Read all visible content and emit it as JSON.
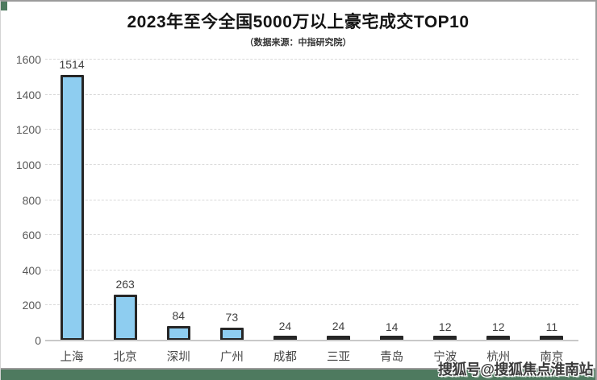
{
  "page": {
    "watermark": "搜狐号@搜狐焦点淮南站",
    "accent_green": "#4E7A5F",
    "panel_background": "#FFFFFF"
  },
  "chart_data": {
    "type": "bar",
    "title": "2023年至今全国5000万以上豪宅成交TOP10",
    "subtitle": "（数据来源：中指研究院）",
    "categories": [
      "上海",
      "北京",
      "深圳",
      "广州",
      "成都",
      "三亚",
      "青岛",
      "宁波",
      "杭州",
      "南京"
    ],
    "values": [
      1514,
      263,
      84,
      73,
      24,
      24,
      14,
      12,
      12,
      11
    ],
    "xlabel": "",
    "ylabel": "",
    "ylim": [
      0,
      1600
    ],
    "yticks": [
      0,
      200,
      400,
      600,
      800,
      1000,
      1200,
      1400,
      1600
    ],
    "grid": "horizontal-dashed",
    "legend": "none",
    "bar_fill": "#8ECDF0",
    "bar_border": "#262626",
    "gridline_color": "#D9D9D9"
  }
}
